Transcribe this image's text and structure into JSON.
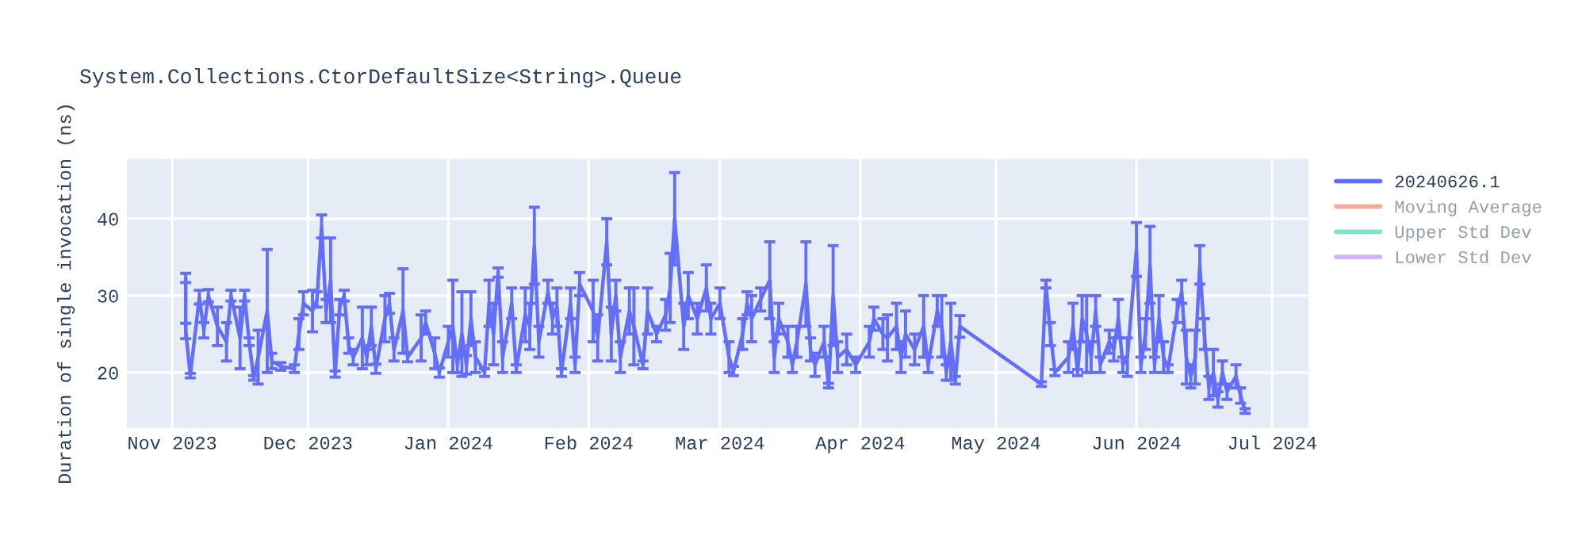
{
  "chart_data": {
    "type": "line",
    "title": "System.Collections.CtorDefaultSize<String>.Queue",
    "ylabel": "Duration of single invocation (ns)",
    "xlim": [
      "2023-10-22",
      "2024-07-09"
    ],
    "xticks": [
      {
        "value": "2023-11-01",
        "label": "Nov 2023"
      },
      {
        "value": "2023-12-01",
        "label": "Dec 2023"
      },
      {
        "value": "2024-01-01",
        "label": "Jan 2024"
      },
      {
        "value": "2024-02-01",
        "label": "Feb 2024"
      },
      {
        "value": "2024-03-01",
        "label": "Mar 2024"
      },
      {
        "value": "2024-04-01",
        "label": "Apr 2024"
      },
      {
        "value": "2024-05-01",
        "label": "May 2024"
      },
      {
        "value": "2024-06-01",
        "label": "Jun 2024"
      },
      {
        "value": "2024-07-01",
        "label": "Jul 2024"
      }
    ],
    "ylim": [
      12.8,
      47.8
    ],
    "yticks": [
      20,
      30,
      40
    ],
    "grid": true,
    "legend": "top right",
    "marker": "none",
    "line_style": "solid",
    "series": [
      {
        "name": "20240626.1",
        "color": "#636efa",
        "x": [
          "2023-11-04",
          "2023-11-04",
          "2023-11-05",
          "2023-11-07",
          "2023-11-08",
          "2023-11-09",
          "2023-11-11",
          "2023-11-13",
          "2023-11-14",
          "2023-11-16",
          "2023-11-17",
          "2023-11-18",
          "2023-11-19",
          "2023-11-20",
          "2023-11-22",
          "2023-11-23",
          "2023-11-25",
          "2023-11-28",
          "2023-11-29",
          "2023-11-30",
          "2023-12-02",
          "2023-12-03",
          "2023-12-04",
          "2023-12-05",
          "2023-12-06",
          "2023-12-07",
          "2023-12-08",
          "2023-12-09",
          "2023-12-10",
          "2023-12-11",
          "2023-12-13",
          "2023-12-14",
          "2023-12-15",
          "2023-12-16",
          "2023-12-18",
          "2023-12-19",
          "2023-12-20",
          "2023-12-22",
          "2023-12-23",
          "2023-12-26",
          "2023-12-27",
          "2023-12-29",
          "2023-12-30",
          "2024-01-01",
          "2024-01-02",
          "2024-01-03",
          "2024-01-04",
          "2024-01-05",
          "2024-01-06",
          "2024-01-07",
          "2024-01-09",
          "2024-01-10",
          "2024-01-11",
          "2024-01-12",
          "2024-01-13",
          "2024-01-15",
          "2024-01-16",
          "2024-01-18",
          "2024-01-19",
          "2024-01-20",
          "2024-01-21",
          "2024-01-23",
          "2024-01-24",
          "2024-01-25",
          "2024-01-26",
          "2024-01-28",
          "2024-01-29",
          "2024-01-30",
          "2024-02-02",
          "2024-02-03",
          "2024-02-05",
          "2024-02-06",
          "2024-02-07",
          "2024-02-08",
          "2024-02-10",
          "2024-02-11",
          "2024-02-13",
          "2024-02-14",
          "2024-02-16",
          "2024-02-18",
          "2024-02-19",
          "2024-02-20",
          "2024-02-22",
          "2024-02-23",
          "2024-02-25",
          "2024-02-27",
          "2024-02-28",
          "2024-03-01",
          "2024-03-03",
          "2024-03-04",
          "2024-03-06",
          "2024-03-07",
          "2024-03-08",
          "2024-03-10",
          "2024-03-12",
          "2024-03-13",
          "2024-03-14",
          "2024-03-16",
          "2024-03-17",
          "2024-03-18",
          "2024-03-20",
          "2024-03-21",
          "2024-03-22",
          "2024-03-24",
          "2024-03-25",
          "2024-03-26",
          "2024-03-27",
          "2024-03-29",
          "2024-03-31",
          "2024-04-03",
          "2024-04-04",
          "2024-04-06",
          "2024-04-07",
          "2024-04-09",
          "2024-04-10",
          "2024-04-11",
          "2024-04-13",
          "2024-04-15",
          "2024-04-16",
          "2024-04-18",
          "2024-04-19",
          "2024-04-20",
          "2024-04-21",
          "2024-04-22",
          "2024-04-23",
          "2024-05-11",
          "2024-05-12",
          "2024-05-13",
          "2024-05-14",
          "2024-05-17",
          "2024-05-18",
          "2024-05-19",
          "2024-05-20",
          "2024-05-21",
          "2024-05-22",
          "2024-05-23",
          "2024-05-24",
          "2024-05-26",
          "2024-05-27",
          "2024-05-28",
          "2024-05-29",
          "2024-05-30",
          "2024-06-01",
          "2024-06-02",
          "2024-06-03",
          "2024-06-04",
          "2024-06-05",
          "2024-06-06",
          "2024-06-07",
          "2024-06-08",
          "2024-06-10",
          "2024-06-11",
          "2024-06-12",
          "2024-06-13",
          "2024-06-14",
          "2024-06-15",
          "2024-06-16",
          "2024-06-17",
          "2024-06-18",
          "2024-06-19",
          "2024-06-20",
          "2024-06-21",
          "2024-06-23",
          "2024-06-24",
          "2024-06-25"
        ],
        "values": [
          32.3,
          25.4,
          19.6,
          29.8,
          25.5,
          30,
          26,
          24,
          30,
          24.5,
          30,
          24,
          19.3,
          22,
          28,
          21.5,
          20.8,
          20.5,
          25,
          29,
          28,
          29.5,
          39,
          28,
          32,
          19.8,
          28.5,
          30,
          23.5,
          22,
          24.5,
          22,
          26,
          20.5,
          27,
          29,
          23,
          28,
          22,
          24.5,
          26.5,
          22.5,
          20,
          24,
          26,
          21,
          25,
          21,
          27,
          22,
          20,
          29,
          25,
          33,
          22,
          29,
          20.5,
          27.5,
          26,
          36.5,
          24,
          30.5,
          27,
          28.5,
          20,
          29,
          21,
          31.5,
          28,
          24.5,
          37,
          25,
          30,
          22,
          28,
          26,
          21,
          28,
          25,
          27.5,
          31,
          40,
          26,
          30,
          27,
          31,
          27,
          29,
          22,
          20.2,
          25,
          29,
          27,
          29.5,
          32,
          22,
          27,
          24,
          21,
          24,
          31.5,
          23,
          21,
          24,
          18.3,
          30,
          22,
          23,
          21,
          24,
          27,
          25,
          24.5,
          26,
          22,
          25,
          23,
          26,
          21,
          28,
          26,
          20,
          24,
          19,
          26,
          18.5,
          31.5,
          25,
          20,
          22,
          26,
          20,
          27,
          25,
          22,
          28,
          21,
          24,
          23,
          27,
          21,
          22,
          36,
          21,
          25,
          34,
          21,
          27,
          22,
          20.5,
          28,
          30.5,
          22,
          19.5,
          22,
          34,
          25,
          18,
          20,
          16.5,
          20,
          17.5,
          19.5,
          17,
          15
        ],
        "errors": [
          0.6,
          1,
          0.3,
          0.9,
          1,
          0.8,
          2.5,
          2.5,
          0.7,
          4,
          0.7,
          0.5,
          0.3,
          3.5,
          8,
          1,
          0.5,
          0.5,
          2,
          1.5,
          2.7,
          1,
          1.5,
          1.5,
          5.5,
          0.4,
          1,
          0.7,
          1,
          1,
          4,
          1,
          2.5,
          0.6,
          3,
          1.3,
          1.5,
          5.5,
          0.6,
          3,
          1.5,
          2,
          0.6,
          2,
          6,
          1,
          5.5,
          1.2,
          3.5,
          2,
          0.5,
          3,
          4,
          0.6,
          2,
          2,
          0.5,
          3.5,
          3,
          5,
          2,
          1.5,
          2,
          2.5,
          0.5,
          2,
          1,
          1.5,
          4,
          3,
          3,
          3.5,
          2,
          2,
          3,
          5,
          0.5,
          3,
          1,
          2,
          4.5,
          6,
          3,
          3,
          2,
          3,
          2,
          2,
          2,
          0.6,
          2,
          1.5,
          3,
          1.5,
          5,
          2,
          2,
          2,
          1,
          2,
          5.5,
          1.5,
          1.5,
          2,
          0.3,
          6.5,
          2,
          2,
          1,
          2,
          1.5,
          2,
          3,
          3,
          2,
          3,
          2,
          4,
          1,
          2,
          4,
          1,
          5,
          0.5,
          1.4,
          0.3,
          0.5,
          1.5,
          0.4,
          2,
          3,
          0.4,
          3,
          5,
          2,
          2,
          1,
          1.5,
          1.5,
          2.5,
          1,
          2.5,
          3.5,
          1,
          2,
          5,
          1,
          3,
          2,
          0.5,
          1.5,
          1.5,
          3.5,
          1.5,
          3.5,
          2.5,
          2,
          1.5,
          3,
          1,
          1.5,
          1,
          1.5,
          1,
          0.3
        ]
      },
      {
        "name": "Moving Average",
        "color": "#ef553b"
      },
      {
        "name": "Upper Std Dev",
        "color": "#00cc96"
      },
      {
        "name": "Lower Std Dev",
        "color": "#ab63fa"
      }
    ]
  }
}
